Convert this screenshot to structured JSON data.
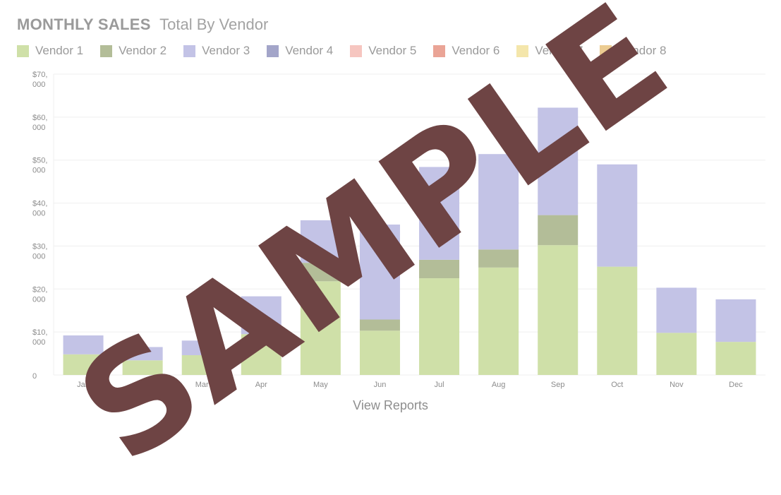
{
  "header": {
    "title": "MONTHLY SALES",
    "subtitle": "Total By Vendor"
  },
  "footer": {
    "link_label": "View Reports"
  },
  "watermark": "SAMPLE",
  "chart_data": {
    "type": "bar",
    "stacked": true,
    "grid": true,
    "legend_position": "top-left",
    "categories": [
      "Jan",
      "Feb",
      "Mar",
      "Apr",
      "May",
      "Jun",
      "Jul",
      "Aug",
      "Sep",
      "Oct",
      "Nov",
      "Dec"
    ],
    "ylim": [
      0,
      70000
    ],
    "y_ticks": [
      {
        "value": 0,
        "line1": "0",
        "line2": ""
      },
      {
        "value": 10000,
        "line1": "$10,",
        "line2": "000"
      },
      {
        "value": 20000,
        "line1": "$20,",
        "line2": "000"
      },
      {
        "value": 30000,
        "line1": "$30,",
        "line2": "000"
      },
      {
        "value": 40000,
        "line1": "$40,",
        "line2": "000"
      },
      {
        "value": 50000,
        "line1": "$50,",
        "line2": "000"
      },
      {
        "value": 60000,
        "line1": "$60,",
        "line2": "000"
      },
      {
        "value": 70000,
        "line1": "$70,",
        "line2": "000"
      }
    ],
    "series": [
      {
        "name": "Vendor 1",
        "color": "#cfe0a8",
        "values": [
          4800,
          3400,
          4600,
          9500,
          21800,
          10300,
          22500,
          25000,
          30200,
          25200,
          9800,
          7700
        ]
      },
      {
        "name": "Vendor 2",
        "color": "#b3bd98",
        "values": [
          0,
          0,
          0,
          0,
          4300,
          2600,
          4300,
          4200,
          7000,
          0,
          0,
          0
        ]
      },
      {
        "name": "Vendor 3",
        "color": "#c3c3e6",
        "values": [
          4400,
          3100,
          3400,
          8800,
          9900,
          22100,
          21600,
          22200,
          25000,
          23800,
          10500,
          9900
        ]
      },
      {
        "name": "Vendor 4",
        "color": "#a3a5c9",
        "values": [
          0,
          0,
          0,
          0,
          0,
          0,
          0,
          0,
          0,
          0,
          0,
          0
        ]
      },
      {
        "name": "Vendor 5",
        "color": "#f6c6c0",
        "values": [
          0,
          0,
          0,
          0,
          0,
          0,
          0,
          0,
          0,
          0,
          0,
          0
        ]
      },
      {
        "name": "Vendor 6",
        "color": "#eaa496",
        "values": [
          0,
          0,
          0,
          0,
          0,
          0,
          0,
          0,
          0,
          0,
          0,
          0
        ]
      },
      {
        "name": "Vendor 7",
        "color": "#f4e6ab",
        "values": [
          0,
          0,
          0,
          0,
          0,
          0,
          0,
          0,
          0,
          0,
          0,
          0
        ]
      },
      {
        "name": "Vendor 8",
        "color": "#eccc92",
        "values": [
          0,
          0,
          0,
          0,
          0,
          0,
          0,
          0,
          0,
          0,
          0,
          0
        ]
      }
    ]
  }
}
